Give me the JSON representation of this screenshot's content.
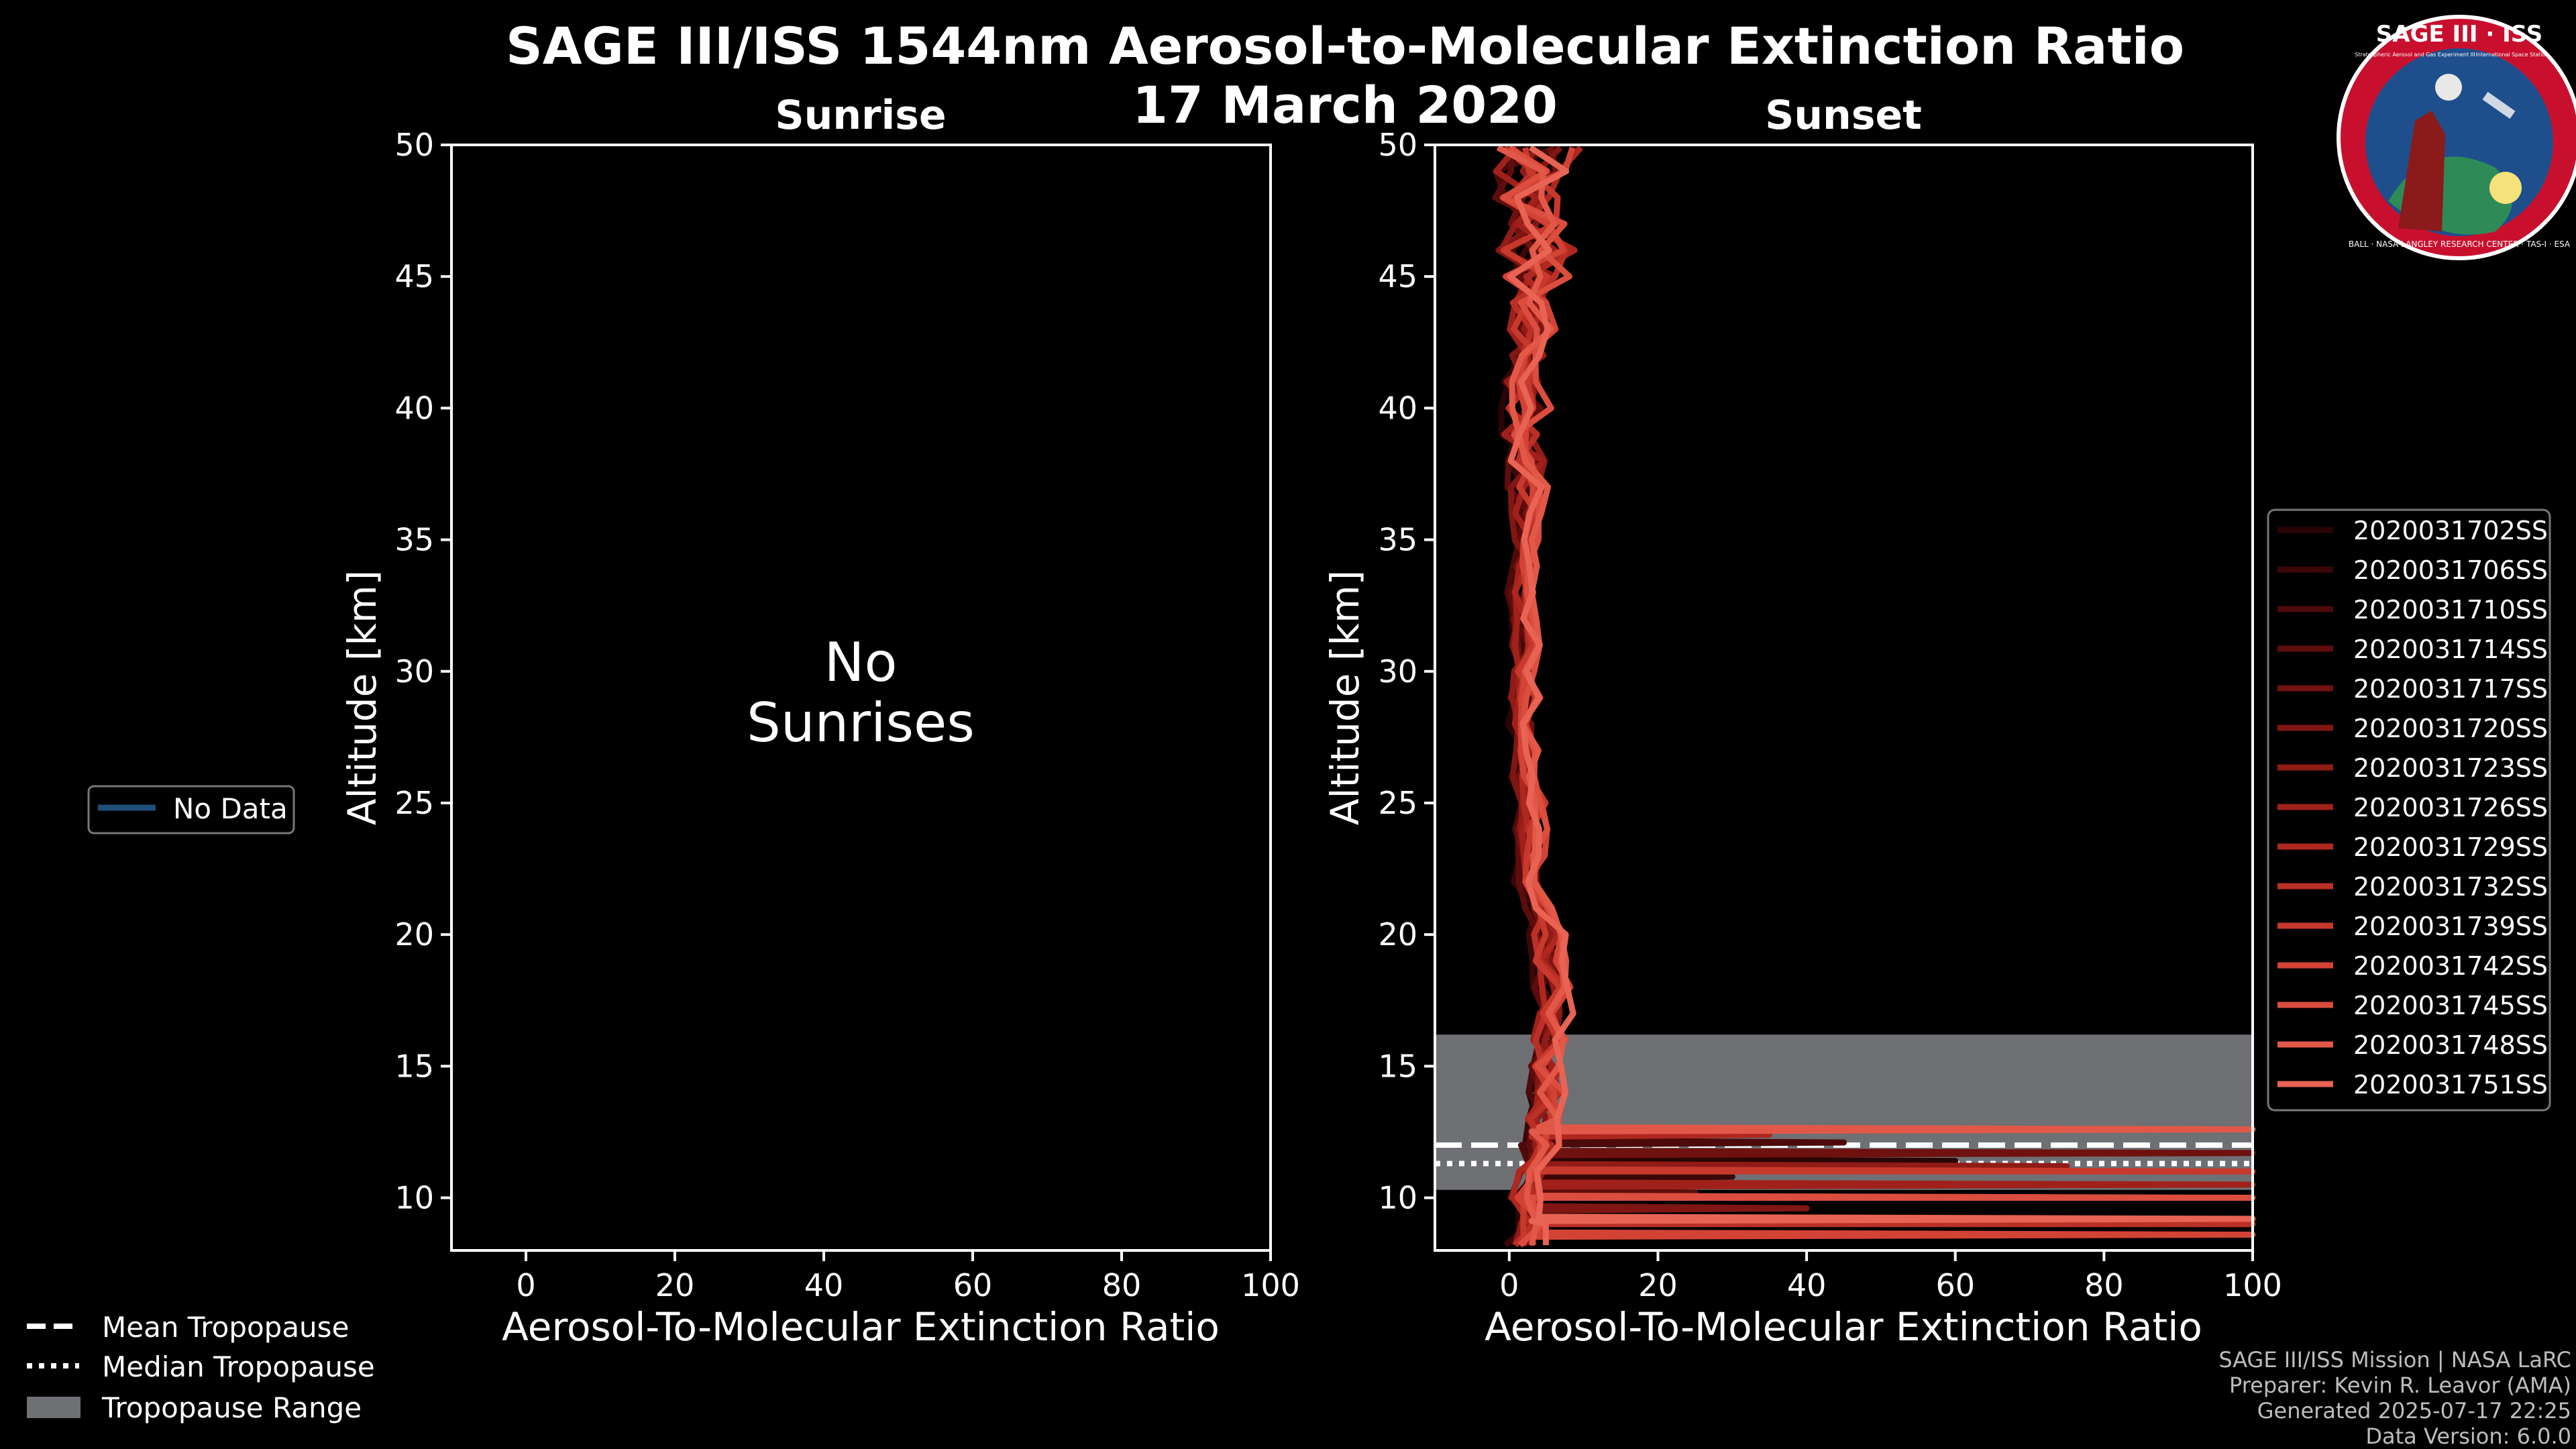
{
  "title_line1": "SAGE III/ISS 1544nm Aerosol-to-Molecular Extinction Ratio",
  "title_line2": "17 March 2020",
  "logo": {
    "text": "SAGE III · ISS",
    "subtitle_left": "Stratospheric Aerosol and Gas Experiment III",
    "subtitle_right": "International Space Station",
    "ring_text": "BALL · NASA LANGLEY RESEARCH CENTER · TAS-I · ESA",
    "color_ring": "#c8102e",
    "color_field": "#1f4e8c"
  },
  "left_legend": {
    "label": "No Data",
    "color": "#1f4e79"
  },
  "tropopause_legend": [
    {
      "label": "Mean Tropopause",
      "style": "dashed"
    },
    {
      "label": "Median Tropopause",
      "style": "dotted"
    },
    {
      "label": "Tropopause Range",
      "style": "fill",
      "color": "#6e7073"
    }
  ],
  "footer": [
    "SAGE III/ISS Mission | NASA LaRC",
    "Preparer: Kevin R. Leavor (AMA)",
    "Generated 2025-07-17 22:25",
    "Data Version: 6.0.0"
  ],
  "chart_data": [
    {
      "type": "line",
      "title": "Sunrise",
      "xlabel": "Aerosol-To-Molecular Extinction Ratio",
      "ylabel": "Altitude [km]",
      "xlim": [
        -10,
        100
      ],
      "ylim": [
        8,
        50
      ],
      "xticks": [
        0,
        20,
        40,
        60,
        80,
        100
      ],
      "yticks": [
        10,
        15,
        20,
        25,
        30,
        35,
        40,
        45,
        50
      ],
      "annotation": "No\nSunrises",
      "series": []
    },
    {
      "type": "line",
      "title": "Sunset",
      "xlabel": "Aerosol-To-Molecular Extinction Ratio",
      "ylabel": "Altitude [km]",
      "xlim": [
        -10,
        100
      ],
      "ylim": [
        8,
        50
      ],
      "xticks": [
        0,
        20,
        40,
        60,
        80,
        100
      ],
      "yticks": [
        10,
        15,
        20,
        25,
        30,
        35,
        40,
        45,
        50
      ],
      "tropopause": {
        "range_km": [
          10.3,
          16.2
        ],
        "mean_km": 12.0,
        "median_km": 11.3
      },
      "profile_base": [
        [
          8.2,
          2
        ],
        [
          9,
          3
        ],
        [
          10,
          2
        ],
        [
          11,
          3
        ],
        [
          12,
          4
        ],
        [
          13,
          4
        ],
        [
          14,
          5
        ],
        [
          15,
          5
        ],
        [
          16,
          5
        ],
        [
          17,
          6
        ],
        [
          18,
          6
        ],
        [
          19,
          5
        ],
        [
          20,
          5
        ],
        [
          21,
          4
        ],
        [
          22,
          3
        ],
        [
          23,
          3
        ],
        [
          24,
          3
        ],
        [
          25,
          3
        ],
        [
          26,
          2
        ],
        [
          27,
          2
        ],
        [
          28,
          2
        ],
        [
          29,
          2
        ],
        [
          30,
          2
        ],
        [
          31,
          2
        ],
        [
          32,
          2
        ],
        [
          33,
          2
        ],
        [
          34,
          2
        ],
        [
          35,
          2
        ],
        [
          36,
          2
        ],
        [
          37,
          2
        ],
        [
          38,
          2
        ],
        [
          39,
          2
        ],
        [
          40,
          2
        ],
        [
          41,
          2
        ],
        [
          42,
          3
        ],
        [
          43,
          3
        ],
        [
          44,
          3
        ],
        [
          45,
          3
        ],
        [
          46,
          3
        ],
        [
          47,
          3
        ],
        [
          48,
          3
        ],
        [
          49,
          3
        ],
        [
          49.9,
          3
        ]
      ],
      "series": [
        {
          "name": "2020031702SS",
          "color": "#2a0505",
          "spike_km": 11.4,
          "spike_value": 60
        },
        {
          "name": "2020031706SS",
          "color": "#3b0707",
          "spike_km": 10.8,
          "spike_value": 30
        },
        {
          "name": "2020031710SS",
          "color": "#4d0a0a",
          "spike_km": 12.1,
          "spike_value": 45
        },
        {
          "name": "2020031714SS",
          "color": "#5e0d0c",
          "spike_km": 10.2,
          "spike_value": 25
        },
        {
          "name": "2020031717SS",
          "color": "#6f110f",
          "spike_km": 11.7,
          "spike_value": 100
        },
        {
          "name": "2020031720SS",
          "color": "#801613",
          "spike_km": 9.6,
          "spike_value": 40
        },
        {
          "name": "2020031723SS",
          "color": "#901b17",
          "spike_km": 11.2,
          "spike_value": 75
        },
        {
          "name": "2020031726SS",
          "color": "#a0211b",
          "spike_km": 10.5,
          "spike_value": 100
        },
        {
          "name": "2020031729SS",
          "color": "#ae2820",
          "spike_km": 12.4,
          "spike_value": 35
        },
        {
          "name": "2020031732SS",
          "color": "#bb3026",
          "spike_km": 9.0,
          "spike_value": 100
        },
        {
          "name": "2020031739SS",
          "color": "#c7392d",
          "spike_km": 11.0,
          "spike_value": 100
        },
        {
          "name": "2020031742SS",
          "color": "#d24335",
          "spike_km": 8.6,
          "spike_value": 100
        },
        {
          "name": "2020031745SS",
          "color": "#db4d3e",
          "spike_km": 10.0,
          "spike_value": 100
        },
        {
          "name": "2020031748SS",
          "color": "#e25848",
          "spike_km": 12.6,
          "spike_value": 100
        },
        {
          "name": "2020031751SS",
          "color": "#e86353",
          "spike_km": 9.2,
          "spike_value": 100
        }
      ]
    }
  ]
}
